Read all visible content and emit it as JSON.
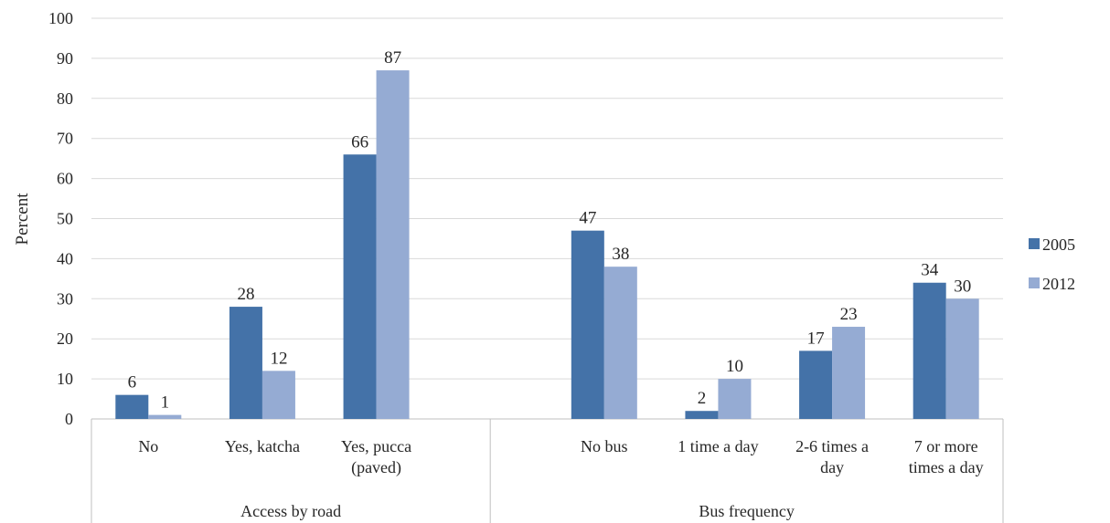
{
  "chart_data": {
    "type": "bar",
    "ylabel": "Percent",
    "ylim": [
      0,
      100
    ],
    "yticks": [
      0,
      10,
      20,
      30,
      40,
      50,
      60,
      70,
      80,
      90,
      100
    ],
    "grid": true,
    "legend_position": "right",
    "groups": [
      {
        "label": "Access by road",
        "categories": [
          "No",
          "Yes, katcha",
          "Yes, pucca (paved)"
        ]
      },
      {
        "label": "Bus frequency",
        "categories": [
          "No bus",
          "1 time a day",
          "2-6 times a day",
          "7 or more times a day"
        ]
      }
    ],
    "categories": [
      "No",
      "Yes, katcha",
      "Yes, pucca (paved)",
      "",
      "No bus",
      "1 time a day",
      "2-6 times a day",
      "7 or more times a day"
    ],
    "series": [
      {
        "name": "2005",
        "color": "#4472a8",
        "values": [
          6,
          28,
          66,
          null,
          47,
          2,
          17,
          34
        ]
      },
      {
        "name": "2012",
        "color": "#95abd3",
        "values": [
          1,
          12,
          87,
          null,
          38,
          10,
          23,
          30
        ]
      }
    ]
  }
}
